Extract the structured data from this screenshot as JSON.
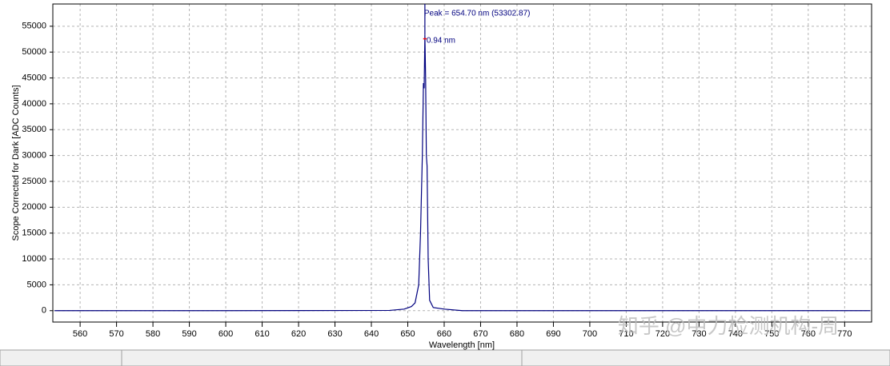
{
  "chart_data": {
    "type": "line",
    "x_label": "Wavelength [nm]",
    "y_label": "Scope Corrected for Dark [ADC Counts]",
    "xlim": [
      552.5,
      777.4
    ],
    "ylim": [
      -2200,
      59300
    ],
    "xticks": [
      560,
      570,
      580,
      590,
      600,
      610,
      620,
      630,
      640,
      650,
      660,
      670,
      680,
      690,
      700,
      710,
      720,
      730,
      740,
      750,
      760,
      770
    ],
    "yticks": [
      0,
      5000,
      10000,
      15000,
      20000,
      25000,
      30000,
      35000,
      40000,
      45000,
      50000,
      55000
    ],
    "grid": true,
    "series": [
      {
        "color": "#00007f",
        "x": [
          553,
          600,
          645,
          649,
          651,
          652,
          653,
          653.5,
          654,
          654.3,
          654.5,
          654.7,
          654.9,
          655.1,
          655.3,
          655.6,
          656,
          657,
          660,
          665,
          700,
          777
        ],
        "values": [
          0,
          0,
          50,
          300,
          800,
          1500,
          5000,
          15000,
          30000,
          44000,
          43000,
          53302.87,
          45000,
          30000,
          28000,
          10000,
          2000,
          600,
          300,
          0,
          0,
          0
        ]
      }
    ],
    "peak": {
      "x": 654.7,
      "y": 53302.87,
      "label": "Peak = 654.70 nm (53302.87)",
      "color": "#00007f"
    },
    "fwhm": {
      "value": 0.94,
      "label": "0.94 nm",
      "color": "#ff0000"
    },
    "watermark": "知乎 @中力检测机构-周"
  }
}
